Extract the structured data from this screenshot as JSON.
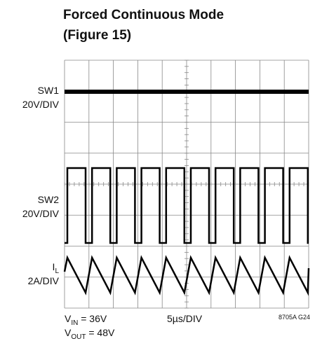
{
  "title": {
    "line1": "Forced Continuous Mode",
    "line2": "(Figure 15)"
  },
  "channels": [
    {
      "name": "SW1",
      "scale": "20V/DIV"
    },
    {
      "name": "SW2",
      "scale": "20V/DIV"
    },
    {
      "name": {
        "symbol": "I",
        "subscript": "L"
      },
      "scale": "2A/DIV"
    }
  ],
  "footer": {
    "vin": {
      "symbol": "V",
      "subscript": "IN",
      "text": " = 36V"
    },
    "vout": {
      "symbol": "V",
      "subscript": "OUT",
      "text": " = 48V"
    },
    "timebase": "5µs/DIV",
    "code": "8705A G24"
  }
}
